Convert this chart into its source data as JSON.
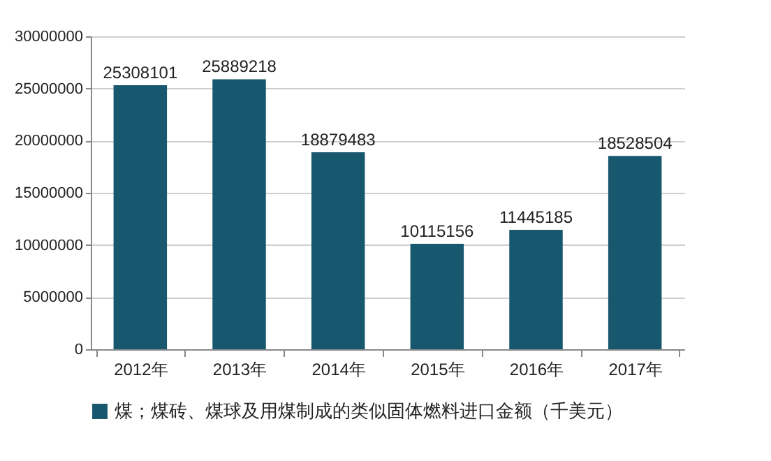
{
  "chart_data": {
    "type": "bar",
    "categories": [
      "2012年",
      "2013年",
      "2014年",
      "2015年",
      "2016年",
      "2017年"
    ],
    "series": [
      {
        "name": "煤；煤砖、煤球及用煤制成的类似固体燃料进口金额（千美元）",
        "color": "#17586e",
        "values": [
          25308101,
          25889218,
          18879483,
          10115156,
          11445185,
          18528504
        ]
      }
    ],
    "ylim": [
      0,
      30000000
    ],
    "yticks": [
      0,
      5000000,
      10000000,
      15000000,
      20000000,
      25000000,
      30000000
    ],
    "grid": "y",
    "legend": "bottom",
    "data_labels": true
  }
}
